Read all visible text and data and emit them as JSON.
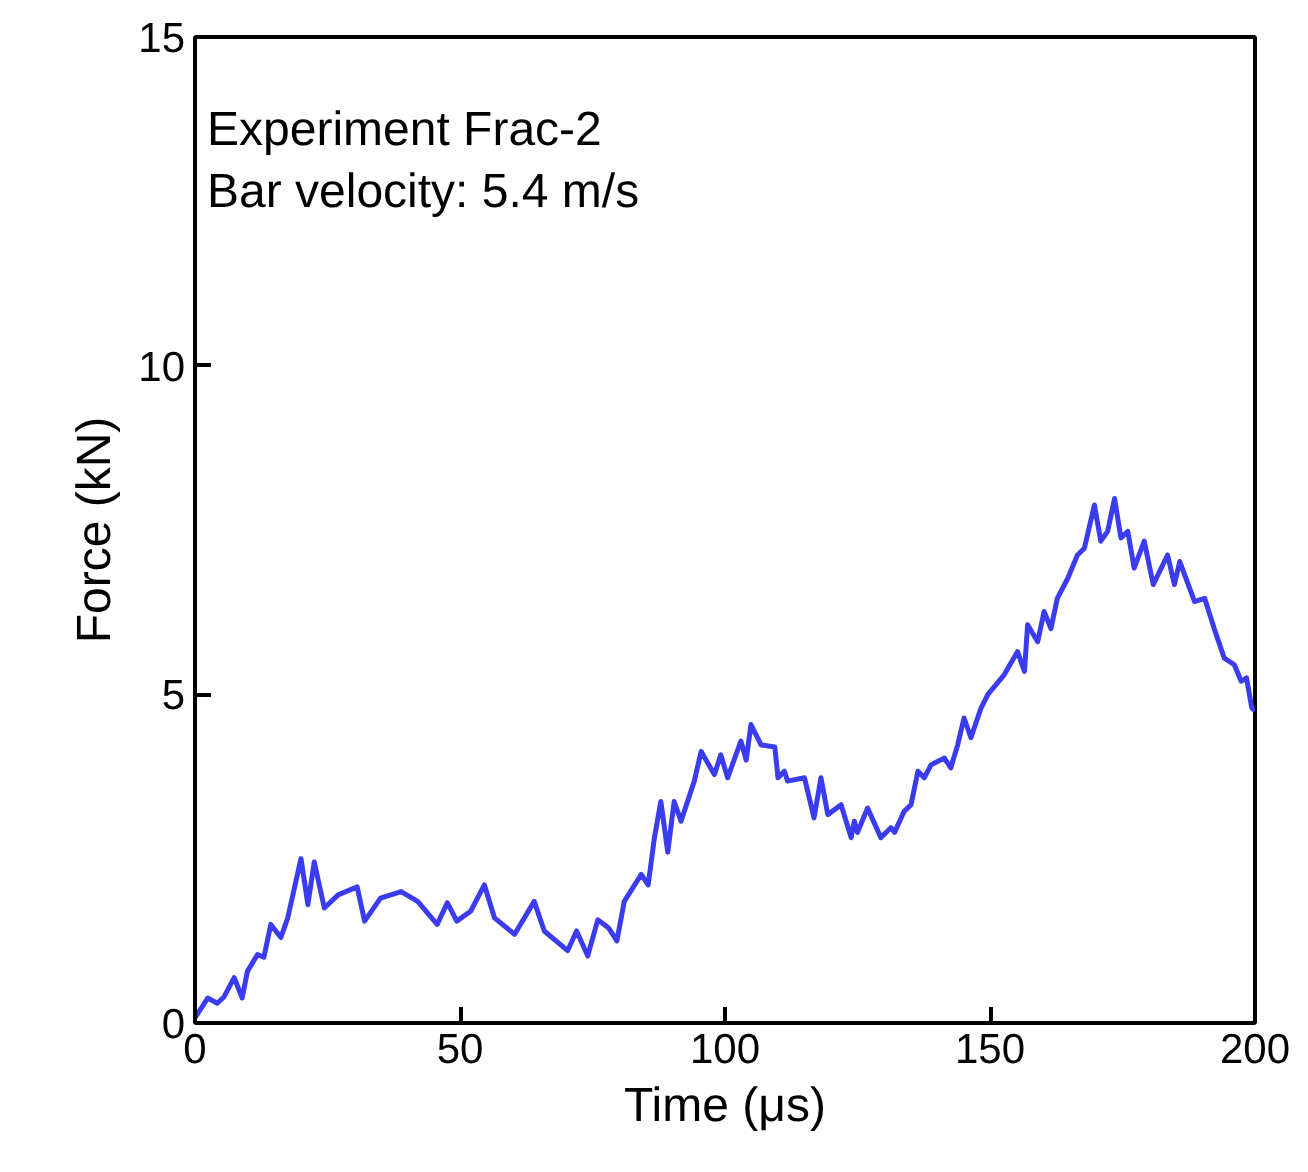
{
  "chart_data": {
    "type": "line",
    "xlabel": "Time (μs)",
    "ylabel": "Force (kN)",
    "annotations": [
      "Experiment Frac-2",
      "Bar velocity: 5.4 m/s"
    ],
    "xlim": [
      0,
      200
    ],
    "ylim": [
      0,
      15
    ],
    "xticks": [
      0,
      50,
      100,
      150,
      200
    ],
    "yticks": [
      0,
      5,
      10,
      15
    ],
    "marker": "none",
    "line_style": "solid",
    "series": [
      {
        "color": "#3b3bf0",
        "x": [
          0,
          2.4,
          4.2,
          5.5,
          7.4,
          8.9,
          9.9,
          11.8,
          13,
          14.3,
          16.2,
          17.5,
          20,
          21.3,
          22.5,
          24.4,
          27,
          30.6,
          32,
          35,
          38.9,
          42,
          45.7,
          47.6,
          49.4,
          52,
          54.6,
          56.5,
          60.3,
          64,
          65.9,
          70.3,
          72,
          74.1,
          76,
          78,
          79.6,
          81,
          84.2,
          85.5,
          86.7,
          87.9,
          89.2,
          90.4,
          91.7,
          94.2,
          95.5,
          98,
          99.2,
          100.5,
          103,
          104,
          104.9,
          106.8,
          109.4,
          110,
          111.2,
          111.8,
          115,
          116.8,
          118.1,
          119.4,
          121.9,
          123.8,
          124.4,
          125,
          126.9,
          129.4,
          131.3,
          132,
          133.8,
          135.1,
          136.4,
          137.6,
          138.9,
          141.4,
          142.6,
          143.9,
          145.1,
          146.4,
          148.3,
          149.6,
          152.7,
          155.2,
          156.5,
          157.1,
          159,
          160.2,
          161.5,
          162.7,
          164.7,
          166.5,
          167.8,
          169.7,
          170.9,
          172.2,
          173.5,
          174.7,
          176,
          177.2,
          179.1,
          180.8,
          183.5,
          184.8,
          185.8,
          188.6,
          190.5,
          192.3,
          194.2,
          196.1,
          197.4,
          198.4,
          199.4,
          200
        ],
        "values": [
          0.08,
          0.38,
          0.3,
          0.4,
          0.69,
          0.38,
          0.79,
          1.04,
          1.0,
          1.5,
          1.3,
          1.6,
          2.5,
          1.8,
          2.45,
          1.75,
          1.95,
          2.07,
          1.55,
          1.9,
          2.0,
          1.85,
          1.5,
          1.83,
          1.55,
          1.7,
          2.1,
          1.6,
          1.35,
          1.85,
          1.4,
          1.1,
          1.4,
          1.02,
          1.57,
          1.45,
          1.25,
          1.85,
          2.26,
          2.1,
          2.83,
          3.37,
          2.6,
          3.37,
          3.07,
          3.68,
          4.13,
          3.78,
          4.08,
          3.73,
          4.29,
          4.0,
          4.54,
          4.23,
          4.2,
          3.73,
          3.83,
          3.68,
          3.73,
          3.12,
          3.73,
          3.17,
          3.32,
          2.82,
          3.07,
          2.9,
          3.27,
          2.82,
          2.97,
          2.9,
          3.22,
          3.32,
          3.83,
          3.73,
          3.93,
          4.03,
          3.88,
          4.23,
          4.64,
          4.34,
          4.79,
          5.0,
          5.3,
          5.65,
          5.35,
          6.06,
          5.8,
          6.26,
          6.0,
          6.46,
          6.77,
          7.12,
          7.22,
          7.88,
          7.33,
          7.48,
          7.98,
          7.38,
          7.48,
          6.92,
          7.33,
          6.67,
          7.12,
          6.67,
          7.02,
          6.41,
          6.46,
          6.0,
          5.55,
          5.45,
          5.2,
          5.25,
          4.79,
          4.75
        ]
      }
    ]
  }
}
